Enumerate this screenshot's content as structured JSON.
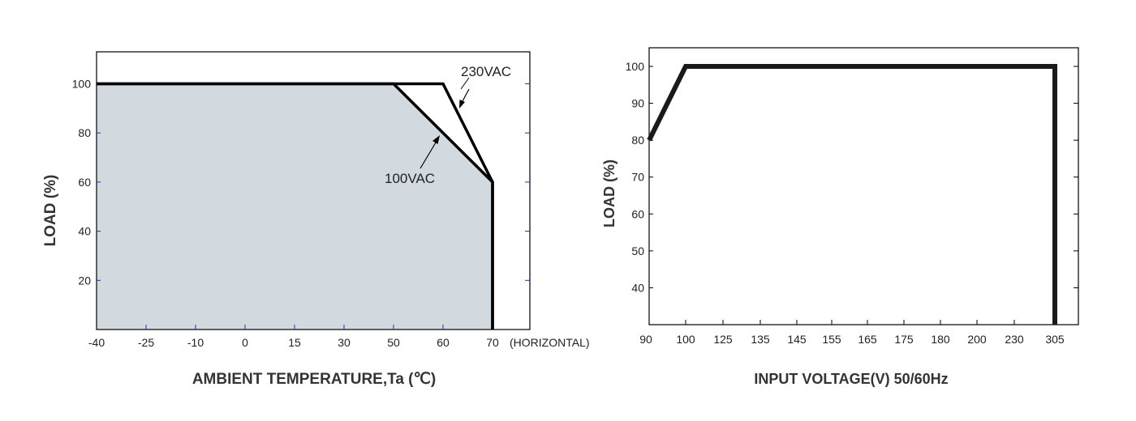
{
  "chart_data": [
    {
      "type": "line",
      "xlabel": "AMBIENT TEMPERATURE,Ta (℃)",
      "ylabel": "LOAD (%)",
      "x_suffix": "(HORIZONTAL)",
      "xticks": [
        "-40",
        "-25",
        "-10",
        "0",
        "15",
        "30",
        "50",
        "60",
        "70"
      ],
      "yticks": [
        "20",
        "40",
        "60",
        "80",
        "100"
      ],
      "ylim": [
        0,
        113
      ],
      "fill_color": "#d3dadf",
      "series": [
        {
          "name": "230VAC",
          "x": [
            "-40",
            "60",
            "70",
            "70"
          ],
          "y": [
            100,
            100,
            60,
            0
          ]
        },
        {
          "name": "100VAC",
          "x": [
            "-40",
            "50",
            "70",
            "70"
          ],
          "y": [
            100,
            100,
            60,
            0
          ]
        }
      ],
      "annotations": [
        "230VAC",
        "100VAC"
      ]
    },
    {
      "type": "line",
      "xlabel": "INPUT VOLTAGE(V) 50/60Hz",
      "ylabel": "LOAD (%)",
      "xticks": [
        "90",
        "100",
        "125",
        "135",
        "145",
        "155",
        "165",
        "175",
        "180",
        "200",
        "230",
        "305"
      ],
      "yticks": [
        "40",
        "50",
        "60",
        "70",
        "80",
        "90",
        "100"
      ],
      "ylim": [
        30,
        105
      ],
      "series": [
        {
          "x": [
            "90",
            "100",
            "305",
            "305"
          ],
          "y": [
            80,
            100,
            100,
            30
          ]
        }
      ]
    }
  ]
}
